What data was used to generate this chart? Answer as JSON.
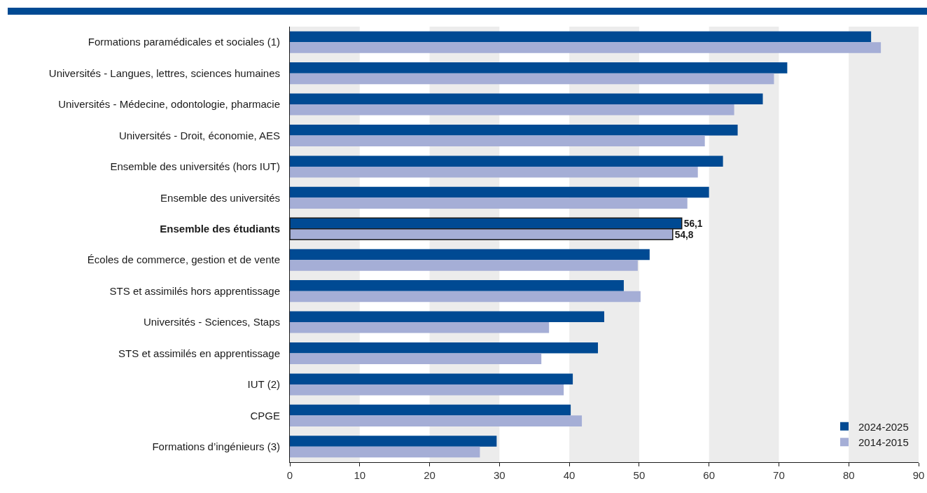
{
  "chart_data": {
    "type": "bar",
    "orientation": "horizontal",
    "categories": [
      "Formations paramédicales et sociales (1)",
      "Universités - Langues, lettres, sciences humaines",
      "Universités - Médecine, odontologie, pharmacie",
      "Universités - Droit, économie, AES",
      "Ensemble des universités (hors IUT)",
      "Ensemble des universités",
      "Ensemble des étudiants",
      "Écoles de commerce, gestion et de vente",
      "STS et assimilés hors apprentissage",
      "Universités - Sciences, Staps",
      "STS et assimilés en apprentissage",
      "IUT (2)",
      "CPGE",
      "Formations d’ingénieurs (3)"
    ],
    "series": [
      {
        "name": "2024-2025",
        "color": "#004a93",
        "values": [
          83.2,
          71.2,
          67.7,
          64.1,
          62.0,
          60.0,
          56.1,
          51.5,
          47.8,
          45.0,
          44.1,
          40.5,
          40.2,
          29.6
        ],
        "value_labels": [
          null,
          null,
          null,
          null,
          null,
          null,
          "56,1",
          null,
          null,
          null,
          null,
          null,
          null,
          null
        ]
      },
      {
        "name": "2014-2015",
        "color": "#a5aed6",
        "values": [
          84.6,
          69.3,
          63.6,
          59.4,
          58.4,
          56.9,
          54.8,
          49.8,
          50.2,
          37.1,
          36.0,
          39.2,
          41.8,
          27.2
        ],
        "value_labels": [
          null,
          null,
          null,
          null,
          null,
          null,
          "54,8",
          null,
          null,
          null,
          null,
          null,
          null,
          null
        ]
      }
    ],
    "xlim": [
      0,
      90
    ],
    "xticks": [
      0,
      10,
      20,
      30,
      40,
      50,
      60,
      70,
      80,
      90
    ],
    "bands": [
      {
        "axis": "x",
        "from": 0,
        "to": 10,
        "color": "#ececec"
      },
      {
        "axis": "x",
        "from": 20,
        "to": 30,
        "color": "#ececec"
      },
      {
        "axis": "x",
        "from": 40,
        "to": 50,
        "color": "#ececec"
      },
      {
        "axis": "x",
        "from": 60,
        "to": 70,
        "color": "#ececec"
      },
      {
        "axis": "x",
        "from": 80,
        "to": 90,
        "color": "#ececec"
      }
    ],
    "grid": false,
    "legend": "bottom right"
  }
}
